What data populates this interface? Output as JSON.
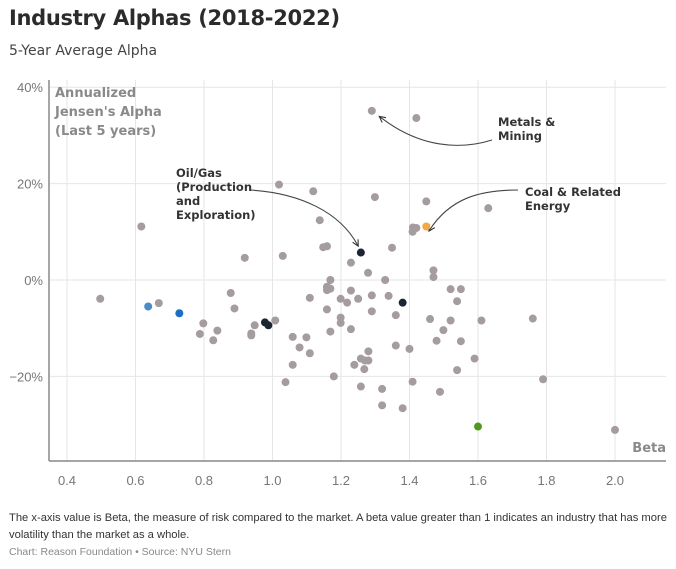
{
  "header": {
    "title": "Industry Alphas (2018-2022)",
    "subtitle": "5-Year Average Alpha"
  },
  "footer": {
    "note": "The x-axis value is Beta, the measure of risk compared to the market. A beta value greater than 1 indicates an industry that has more volatility than the market as a whole.",
    "source": "Chart: Reason Foundation • Source: NYU Stern"
  },
  "chart_data": {
    "type": "scatter",
    "title": "Industry Alphas (2018-2022)",
    "subtitle": "5-Year Average Alpha",
    "xlabel": "Beta",
    "ylabel": "Annualized Jensen's Alpha (Last 5 years)",
    "ylabel_lines": [
      "Annualized",
      "Jensen's Alpha",
      "(Last 5 years)"
    ],
    "xlim": [
      0.35,
      2.15
    ],
    "ylim": [
      -38,
      40
    ],
    "x_ticks": [
      0.4,
      0.6,
      0.8,
      1.0,
      1.2,
      1.4,
      1.6,
      1.8,
      2.0
    ],
    "x_tick_labels": [
      "0.4",
      "0.6",
      "0.8",
      "1.0",
      "1.2",
      "1.4",
      "1.6",
      "1.8",
      "2.0"
    ],
    "y_ticks": [
      40,
      20,
      0,
      -20
    ],
    "y_tick_labels": [
      "40%",
      "20%",
      "0%",
      "−20%"
    ],
    "grid": true,
    "colors": {
      "default": "#a49c9e",
      "dark": "#1c2533",
      "blue": "#1b6fc4",
      "light_blue": "#4a8ccb",
      "orange": "#f5a742",
      "green": "#4e9a1e"
    },
    "annotations": [
      {
        "label_lines": [
          "Metals &",
          "Mining"
        ],
        "target": [
          1.29,
          35.1
        ]
      },
      {
        "label_lines": [
          "Oil/Gas",
          "(Production",
          "and",
          "Exploration)"
        ],
        "target": [
          1.258,
          5.7
        ]
      },
      {
        "label_lines": [
          "Coal & Related",
          "Energy"
        ],
        "target": [
          1.449,
          11.1
        ]
      }
    ],
    "points": [
      {
        "x": 1.29,
        "y": 35.1
      },
      {
        "x": 1.42,
        "y": 33.6
      },
      {
        "x": 1.019,
        "y": 19.8
      },
      {
        "x": 1.119,
        "y": 18.4
      },
      {
        "x": 1.299,
        "y": 17.2
      },
      {
        "x": 1.449,
        "y": 16.3
      },
      {
        "x": 1.63,
        "y": 14.9
      },
      {
        "x": 1.138,
        "y": 12.4
      },
      {
        "x": 0.617,
        "y": 11.1
      },
      {
        "x": 1.449,
        "y": 11.1,
        "color": "orange"
      },
      {
        "x": 1.41,
        "y": 10.9
      },
      {
        "x": 1.42,
        "y": 10.8
      },
      {
        "x": 1.409,
        "y": 10.0
      },
      {
        "x": 1.148,
        "y": 6.8
      },
      {
        "x": 1.159,
        "y": 7.0
      },
      {
        "x": 1.349,
        "y": 6.7
      },
      {
        "x": 1.258,
        "y": 5.7,
        "color": "dark"
      },
      {
        "x": 1.03,
        "y": 5.0
      },
      {
        "x": 0.919,
        "y": 4.6
      },
      {
        "x": 1.229,
        "y": 3.6
      },
      {
        "x": 1.47,
        "y": 2.0
      },
      {
        "x": 1.279,
        "y": 1.5
      },
      {
        "x": 1.47,
        "y": 0.6
      },
      {
        "x": 1.169,
        "y": 0.0
      },
      {
        "x": 1.329,
        "y": 0.0
      },
      {
        "x": 1.159,
        "y": -1.4
      },
      {
        "x": 1.169,
        "y": -1.8
      },
      {
        "x": 1.159,
        "y": -2.1
      },
      {
        "x": 1.229,
        "y": -2.2
      },
      {
        "x": 1.52,
        "y": -1.9
      },
      {
        "x": 1.55,
        "y": -1.9
      },
      {
        "x": 0.878,
        "y": -2.7
      },
      {
        "x": 1.29,
        "y": -3.2
      },
      {
        "x": 1.339,
        "y": -3.3
      },
      {
        "x": 1.109,
        "y": -3.7
      },
      {
        "x": 0.497,
        "y": -3.9
      },
      {
        "x": 1.199,
        "y": -3.9
      },
      {
        "x": 1.25,
        "y": -3.9
      },
      {
        "x": 1.539,
        "y": -4.4
      },
      {
        "x": 1.218,
        "y": -4.7
      },
      {
        "x": 1.38,
        "y": -4.7,
        "color": "dark"
      },
      {
        "x": 0.668,
        "y": -4.8
      },
      {
        "x": 0.637,
        "y": -5.5,
        "color": "light_blue"
      },
      {
        "x": 0.889,
        "y": -5.9
      },
      {
        "x": 1.159,
        "y": -6.1
      },
      {
        "x": 1.29,
        "y": -6.5
      },
      {
        "x": 0.728,
        "y": -6.9,
        "color": "blue"
      },
      {
        "x": 1.36,
        "y": -7.3
      },
      {
        "x": 1.199,
        "y": -7.8
      },
      {
        "x": 1.76,
        "y": -8.0
      },
      {
        "x": 1.46,
        "y": -8.1
      },
      {
        "x": 1.008,
        "y": -8.4
      },
      {
        "x": 1.52,
        "y": -8.4
      },
      {
        "x": 1.61,
        "y": -8.4
      },
      {
        "x": 0.978,
        "y": -8.8,
        "color": "dark"
      },
      {
        "x": 1.199,
        "y": -8.9
      },
      {
        "x": 0.798,
        "y": -9.0
      },
      {
        "x": 0.948,
        "y": -9.4
      },
      {
        "x": 0.988,
        "y": -9.4,
        "color": "dark"
      },
      {
        "x": 1.229,
        "y": -10.2
      },
      {
        "x": 1.499,
        "y": -10.4
      },
      {
        "x": 0.839,
        "y": -10.5
      },
      {
        "x": 1.169,
        "y": -10.7
      },
      {
        "x": 0.938,
        "y": -11.1
      },
      {
        "x": 0.788,
        "y": -11.2
      },
      {
        "x": 0.938,
        "y": -11.5
      },
      {
        "x": 1.059,
        "y": -11.8
      },
      {
        "x": 1.099,
        "y": -11.9
      },
      {
        "x": 0.827,
        "y": -12.5
      },
      {
        "x": 1.479,
        "y": -12.6
      },
      {
        "x": 1.55,
        "y": -12.7
      },
      {
        "x": 1.36,
        "y": -13.6
      },
      {
        "x": 1.079,
        "y": -14.0
      },
      {
        "x": 1.4,
        "y": -14.3
      },
      {
        "x": 1.28,
        "y": -14.8
      },
      {
        "x": 1.109,
        "y": -15.2
      },
      {
        "x": 1.258,
        "y": -16.3
      },
      {
        "x": 1.59,
        "y": -16.3
      },
      {
        "x": 1.27,
        "y": -16.7
      },
      {
        "x": 1.28,
        "y": -16.7
      },
      {
        "x": 1.059,
        "y": -17.6
      },
      {
        "x": 1.239,
        "y": -17.6
      },
      {
        "x": 1.268,
        "y": -18.5
      },
      {
        "x": 1.539,
        "y": -18.7
      },
      {
        "x": 1.179,
        "y": -20.0
      },
      {
        "x": 1.79,
        "y": -20.6
      },
      {
        "x": 1.409,
        "y": -21.1
      },
      {
        "x": 1.038,
        "y": -21.2
      },
      {
        "x": 1.258,
        "y": -22.1
      },
      {
        "x": 1.32,
        "y": -22.6
      },
      {
        "x": 1.489,
        "y": -23.2
      },
      {
        "x": 1.32,
        "y": -26.0
      },
      {
        "x": 1.38,
        "y": -26.6
      },
      {
        "x": 1.6,
        "y": -30.4,
        "color": "green"
      },
      {
        "x": 2.0,
        "y": -31.1
      }
    ]
  }
}
